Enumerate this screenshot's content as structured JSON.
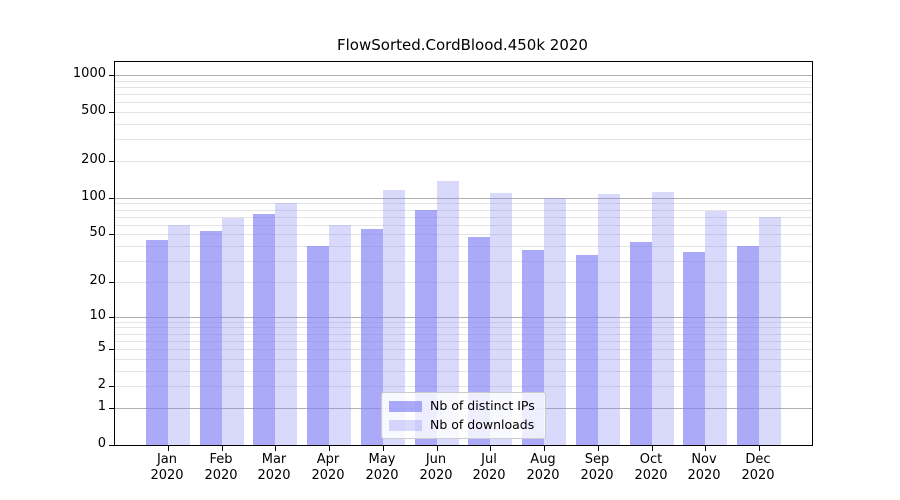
{
  "chart_data": {
    "type": "bar",
    "title": "FlowSorted.CordBlood.450k 2020",
    "categories": [
      "Jan",
      "Feb",
      "Mar",
      "Apr",
      "May",
      "Jun",
      "Jul",
      "Aug",
      "Sep",
      "Oct",
      "Nov",
      "Dec"
    ],
    "category_year": "2020",
    "series": [
      {
        "name": "Nb of distinct IPs",
        "color": "#8282F6",
        "alpha": 0.68,
        "values": [
          45,
          53,
          74,
          40,
          55,
          79,
          48,
          37,
          34,
          43,
          36,
          40
        ]
      },
      {
        "name": "Nb of downloads",
        "color": "#8282F6",
        "alpha": 0.3,
        "values": [
          60,
          68,
          91,
          60,
          116,
          137,
          110,
          100,
          108,
          112,
          78,
          70
        ]
      }
    ],
    "yscale": "log1p",
    "ylim": [
      0,
      1276
    ],
    "yticks": [
      0,
      1,
      2,
      5,
      10,
      20,
      50,
      100,
      200,
      500,
      1000
    ],
    "grid": "horizontal-log-minor",
    "grid_major_color": "#b0b0b0",
    "grid_minor_color": "#e4e4e4",
    "axis_color": "#000000",
    "legend_position": "bottom-center"
  }
}
